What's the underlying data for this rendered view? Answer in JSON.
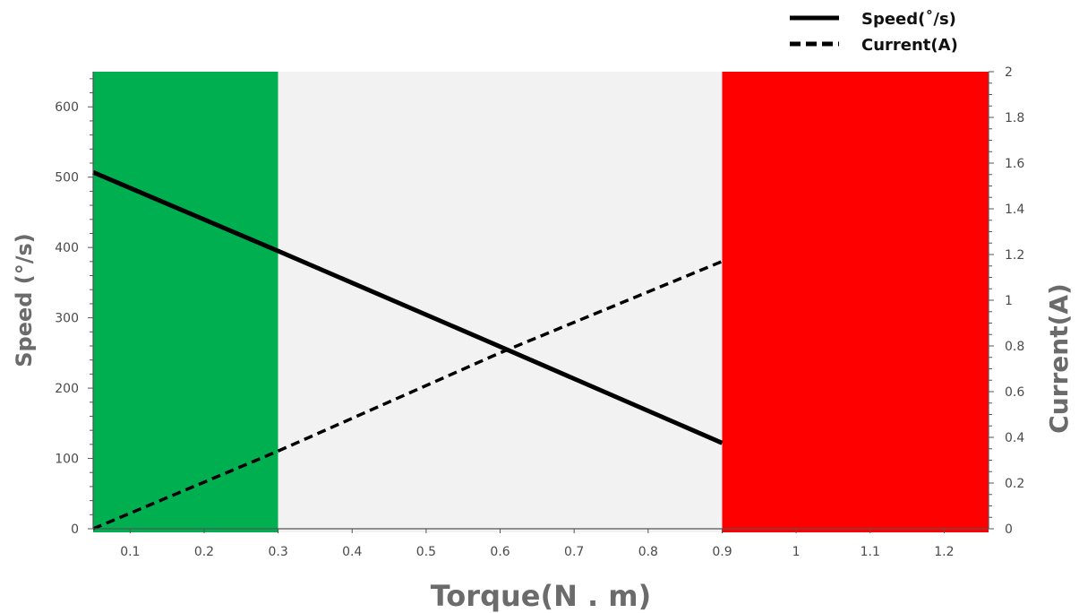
{
  "chart_data": {
    "type": "line",
    "x_label": "Torque(N . m)",
    "y_left_label": "Speed  (°/s)",
    "y_right_label": "Current(A)",
    "x_range": [
      0.05,
      1.26
    ],
    "y_left_range": [
      0,
      650
    ],
    "y_right_range": [
      0,
      2
    ],
    "x_ticks": [
      0.1,
      0.2,
      0.3,
      0.4,
      0.5,
      0.6,
      0.7,
      0.8,
      0.9,
      1,
      1.1,
      1.2
    ],
    "x_tick_labels": [
      "0.1",
      "0.2",
      "0.3",
      "0.4",
      "0.5",
      "0.6",
      "0.7",
      "0.8",
      "0.9",
      "1",
      "1.1",
      "1.2"
    ],
    "y_left_ticks": [
      0,
      100,
      200,
      300,
      400,
      500,
      600
    ],
    "y_left_tick_labels": [
      "0",
      "100",
      "200",
      "300",
      "400",
      "500",
      "600"
    ],
    "y_right_ticks": [
      0,
      0.2,
      0.4,
      0.6,
      0.8,
      1,
      1.2,
      1.4,
      1.6,
      1.8,
      2
    ],
    "y_right_tick_labels": [
      "0",
      "0.2",
      "0.4",
      "0.6",
      "0.8",
      "1",
      "1.2",
      "1.4",
      "1.6",
      "1.8",
      "2"
    ],
    "legend": {
      "position": "top-right",
      "items": [
        {
          "label": "Speed(˚/s)",
          "style": "solid"
        },
        {
          "label": "Current(A)",
          "style": "dashed"
        }
      ]
    },
    "regions": [
      {
        "x": [
          0.05,
          0.3
        ],
        "color": "#00b050"
      },
      {
        "x": [
          0.3,
          0.98
        ],
        "color": "#f2f2f2"
      },
      {
        "x": [
          0.9,
          1.26
        ],
        "color": "#ff0000"
      }
    ],
    "series": [
      {
        "name": "Speed(˚/s)",
        "axis": "left",
        "style": "solid",
        "color": "#000000",
        "x": [
          0.05,
          0.3,
          0.6,
          0.9
        ],
        "y": [
          507,
          395,
          259,
          122
        ]
      },
      {
        "name": "Current(A)",
        "axis": "right",
        "style": "dashed",
        "color": "#000000",
        "x": [
          0.05,
          0.3,
          0.6,
          0.9
        ],
        "y": [
          0.0,
          0.34,
          0.77,
          1.17
        ]
      }
    ]
  }
}
